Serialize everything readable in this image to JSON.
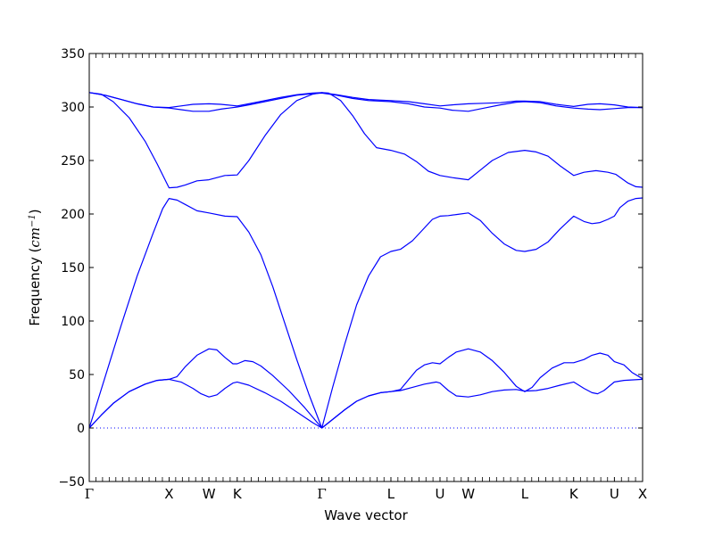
{
  "chart_data": {
    "type": "line",
    "title": "",
    "xlabel": "Wave vector",
    "ylabel": "Frequency (cm⁻¹)",
    "ylabel_text": "Frequency",
    "ylabel_unit": "cm",
    "ylabel_exp": "−1",
    "ylim": [
      -50,
      350
    ],
    "yticks": [
      "−50",
      "0",
      "50",
      "100",
      "150",
      "200",
      "250",
      "300",
      "350"
    ],
    "ytick_values": [
      -50,
      0,
      50,
      100,
      150,
      200,
      250,
      300,
      350
    ],
    "grid": false,
    "legend": "none",
    "line_color": "#0000ff",
    "zero_line": {
      "y": 0,
      "style": "dotted"
    },
    "high_symmetry_points": [
      {
        "label": "Γ",
        "x": 0.0
      },
      {
        "label": "X",
        "x": 1.0
      },
      {
        "label": "W",
        "x": 1.5
      },
      {
        "label": "K",
        "x": 1.854
      },
      {
        "label": "Γ",
        "x": 2.915
      },
      {
        "label": "L",
        "x": 3.78
      },
      {
        "label": "U",
        "x": 4.395
      },
      {
        "label": "W",
        "x": 4.75
      },
      {
        "label": "L",
        "x": 5.457
      },
      {
        "label": "K",
        "x": 6.07
      },
      {
        "label": "U",
        "x": 6.58
      },
      {
        "label": "X",
        "x": 6.934
      }
    ],
    "xlim": [
      0,
      6.934
    ],
    "series": [
      {
        "values": [
          [
            0,
            0
          ],
          [
            0.15,
            12
          ],
          [
            0.3,
            23
          ],
          [
            0.5,
            34
          ],
          [
            0.7,
            41
          ],
          [
            0.85,
            44.5
          ],
          [
            1.0,
            45.5
          ],
          [
            1.15,
            43
          ],
          [
            1.3,
            37
          ],
          [
            1.4,
            32
          ],
          [
            1.5,
            29
          ],
          [
            1.6,
            31
          ],
          [
            1.7,
            37
          ],
          [
            1.8,
            42
          ],
          [
            1.854,
            43
          ],
          [
            2.0,
            40
          ],
          [
            2.2,
            33
          ],
          [
            2.4,
            25
          ],
          [
            2.6,
            15
          ],
          [
            2.8,
            5
          ],
          [
            2.915,
            0
          ],
          [
            3.05,
            8
          ],
          [
            3.2,
            17
          ],
          [
            3.35,
            25
          ],
          [
            3.5,
            30
          ],
          [
            3.65,
            33
          ],
          [
            3.78,
            34
          ],
          [
            3.9,
            35
          ],
          [
            4.05,
            38
          ],
          [
            4.2,
            41
          ],
          [
            4.35,
            43
          ],
          [
            4.395,
            42
          ],
          [
            4.5,
            35
          ],
          [
            4.6,
            30
          ],
          [
            4.75,
            29
          ],
          [
            4.9,
            31
          ],
          [
            5.05,
            34
          ],
          [
            5.2,
            35.5
          ],
          [
            5.35,
            36
          ],
          [
            5.457,
            34.5
          ],
          [
            5.6,
            35
          ],
          [
            5.75,
            37
          ],
          [
            5.9,
            40
          ],
          [
            6.07,
            43
          ],
          [
            6.2,
            37
          ],
          [
            6.3,
            33
          ],
          [
            6.37,
            32
          ],
          [
            6.45,
            35
          ],
          [
            6.58,
            43
          ],
          [
            6.7,
            44.5
          ],
          [
            6.934,
            45.5
          ]
        ]
      },
      {
        "values": [
          [
            0,
            0
          ],
          [
            0.15,
            12
          ],
          [
            0.3,
            23
          ],
          [
            0.5,
            34
          ],
          [
            0.7,
            41
          ],
          [
            0.85,
            44.5
          ],
          [
            1.0,
            45.5
          ],
          [
            1.1,
            48
          ],
          [
            1.2,
            57
          ],
          [
            1.35,
            68
          ],
          [
            1.5,
            74
          ],
          [
            1.6,
            73
          ],
          [
            1.7,
            66
          ],
          [
            1.8,
            60
          ],
          [
            1.854,
            60
          ],
          [
            1.95,
            63
          ],
          [
            2.05,
            62
          ],
          [
            2.15,
            58
          ],
          [
            2.3,
            49
          ],
          [
            2.5,
            35
          ],
          [
            2.7,
            19
          ],
          [
            2.915,
            0
          ],
          [
            3.05,
            8
          ],
          [
            3.2,
            17
          ],
          [
            3.35,
            25
          ],
          [
            3.5,
            30
          ],
          [
            3.65,
            33
          ],
          [
            3.78,
            34
          ],
          [
            3.9,
            36
          ],
          [
            4.0,
            45
          ],
          [
            4.1,
            54
          ],
          [
            4.2,
            59
          ],
          [
            4.3,
            61
          ],
          [
            4.395,
            60
          ],
          [
            4.5,
            66
          ],
          [
            4.6,
            71
          ],
          [
            4.75,
            74
          ],
          [
            4.9,
            71
          ],
          [
            5.05,
            63
          ],
          [
            5.2,
            52
          ],
          [
            5.35,
            39
          ],
          [
            5.457,
            34
          ],
          [
            5.55,
            38
          ],
          [
            5.65,
            47
          ],
          [
            5.8,
            56
          ],
          [
            5.95,
            61
          ],
          [
            6.07,
            61
          ],
          [
            6.2,
            64
          ],
          [
            6.3,
            68
          ],
          [
            6.4,
            70
          ],
          [
            6.5,
            68
          ],
          [
            6.58,
            62
          ],
          [
            6.7,
            59
          ],
          [
            6.8,
            52
          ],
          [
            6.934,
            46
          ]
        ]
      },
      {
        "values": [
          [
            0,
            0
          ],
          [
            0.2,
            48
          ],
          [
            0.4,
            96
          ],
          [
            0.6,
            142
          ],
          [
            0.8,
            182
          ],
          [
            0.92,
            205
          ],
          [
            1.0,
            214.5
          ],
          [
            1.1,
            213
          ],
          [
            1.2,
            209
          ],
          [
            1.35,
            203
          ],
          [
            1.5,
            201
          ],
          [
            1.7,
            198
          ],
          [
            1.854,
            197.5
          ],
          [
            2.0,
            183
          ],
          [
            2.15,
            162
          ],
          [
            2.3,
            132
          ],
          [
            2.45,
            98
          ],
          [
            2.6,
            64
          ],
          [
            2.75,
            32
          ],
          [
            2.915,
            0
          ],
          [
            3.05,
            38
          ],
          [
            3.2,
            78
          ],
          [
            3.35,
            115
          ],
          [
            3.5,
            142
          ],
          [
            3.65,
            160
          ],
          [
            3.78,
            165
          ],
          [
            3.9,
            167
          ],
          [
            4.05,
            175
          ],
          [
            4.2,
            187
          ],
          [
            4.3,
            195
          ],
          [
            4.395,
            198
          ],
          [
            4.5,
            198.5
          ],
          [
            4.6,
            199.5
          ],
          [
            4.75,
            201
          ],
          [
            4.9,
            194
          ],
          [
            5.05,
            182
          ],
          [
            5.2,
            172
          ],
          [
            5.35,
            166
          ],
          [
            5.457,
            165
          ],
          [
            5.6,
            167
          ],
          [
            5.75,
            174
          ],
          [
            5.9,
            186
          ],
          [
            6.07,
            198
          ],
          [
            6.2,
            193
          ],
          [
            6.3,
            191
          ],
          [
            6.4,
            192
          ],
          [
            6.5,
            195
          ],
          [
            6.58,
            198
          ],
          [
            6.65,
            206
          ],
          [
            6.75,
            212
          ],
          [
            6.85,
            214.5
          ],
          [
            6.934,
            215
          ]
        ]
      },
      {
        "values": [
          [
            0,
            313.5
          ],
          [
            0.15,
            312
          ],
          [
            0.3,
            305
          ],
          [
            0.5,
            290
          ],
          [
            0.7,
            268
          ],
          [
            0.85,
            247
          ],
          [
            1.0,
            224.5
          ],
          [
            1.1,
            225
          ],
          [
            1.2,
            227
          ],
          [
            1.35,
            231
          ],
          [
            1.5,
            232
          ],
          [
            1.6,
            234
          ],
          [
            1.7,
            236
          ],
          [
            1.854,
            236.5
          ],
          [
            2.0,
            250
          ],
          [
            2.2,
            273
          ],
          [
            2.4,
            293
          ],
          [
            2.6,
            306
          ],
          [
            2.8,
            312
          ],
          [
            2.915,
            313.5
          ],
          [
            3.0,
            313
          ],
          [
            3.15,
            306
          ],
          [
            3.3,
            292
          ],
          [
            3.45,
            275
          ],
          [
            3.6,
            262
          ],
          [
            3.78,
            259.5
          ],
          [
            3.95,
            256
          ],
          [
            4.1,
            249
          ],
          [
            4.25,
            240
          ],
          [
            4.395,
            236
          ],
          [
            4.55,
            234
          ],
          [
            4.75,
            232
          ],
          [
            4.9,
            241
          ],
          [
            5.05,
            250
          ],
          [
            5.25,
            257.5
          ],
          [
            5.457,
            259.5
          ],
          [
            5.6,
            258
          ],
          [
            5.75,
            254
          ],
          [
            5.9,
            245
          ],
          [
            6.07,
            236
          ],
          [
            6.2,
            239
          ],
          [
            6.35,
            240.5
          ],
          [
            6.5,
            239
          ],
          [
            6.6,
            237
          ],
          [
            6.75,
            229
          ],
          [
            6.85,
            225.5
          ],
          [
            6.934,
            225
          ]
        ]
      },
      {
        "values": [
          [
            0,
            313.5
          ],
          [
            0.2,
            311
          ],
          [
            0.4,
            307
          ],
          [
            0.6,
            303
          ],
          [
            0.8,
            300
          ],
          [
            1.0,
            299
          ],
          [
            1.15,
            297.5
          ],
          [
            1.3,
            296
          ],
          [
            1.5,
            296
          ],
          [
            1.65,
            298
          ],
          [
            1.854,
            300
          ],
          [
            2.0,
            302
          ],
          [
            2.2,
            305
          ],
          [
            2.4,
            308
          ],
          [
            2.6,
            311
          ],
          [
            2.8,
            312.5
          ],
          [
            2.915,
            313
          ],
          [
            3.1,
            311
          ],
          [
            3.3,
            308
          ],
          [
            3.5,
            306
          ],
          [
            3.78,
            305
          ],
          [
            4.0,
            303
          ],
          [
            4.2,
            300
          ],
          [
            4.395,
            299
          ],
          [
            4.55,
            297
          ],
          [
            4.75,
            296
          ],
          [
            4.95,
            299
          ],
          [
            5.15,
            302
          ],
          [
            5.35,
            304.5
          ],
          [
            5.457,
            305
          ],
          [
            5.65,
            304
          ],
          [
            5.85,
            301
          ],
          [
            6.07,
            299
          ],
          [
            6.25,
            298
          ],
          [
            6.4,
            297.5
          ],
          [
            6.58,
            298.5
          ],
          [
            6.75,
            299.5
          ],
          [
            6.934,
            299.5
          ]
        ]
      },
      {
        "values": [
          [
            0,
            313.5
          ],
          [
            0.2,
            311
          ],
          [
            0.4,
            307
          ],
          [
            0.6,
            303
          ],
          [
            0.8,
            300
          ],
          [
            1.0,
            299.5
          ],
          [
            1.15,
            301
          ],
          [
            1.3,
            302.5
          ],
          [
            1.5,
            303
          ],
          [
            1.65,
            302.5
          ],
          [
            1.854,
            301
          ],
          [
            2.0,
            303
          ],
          [
            2.2,
            306
          ],
          [
            2.4,
            309
          ],
          [
            2.6,
            311.5
          ],
          [
            2.8,
            313
          ],
          [
            2.915,
            313.5
          ],
          [
            3.1,
            311.5
          ],
          [
            3.3,
            309
          ],
          [
            3.5,
            307
          ],
          [
            3.78,
            306
          ],
          [
            4.0,
            305
          ],
          [
            4.2,
            303
          ],
          [
            4.395,
            301
          ],
          [
            4.55,
            302
          ],
          [
            4.75,
            303
          ],
          [
            4.95,
            303.5
          ],
          [
            5.15,
            304
          ],
          [
            5.35,
            305.5
          ],
          [
            5.457,
            305.5
          ],
          [
            5.65,
            305
          ],
          [
            5.85,
            302.5
          ],
          [
            6.07,
            300.5
          ],
          [
            6.25,
            302.5
          ],
          [
            6.4,
            303
          ],
          [
            6.58,
            302
          ],
          [
            6.75,
            300
          ],
          [
            6.934,
            299.5
          ]
        ]
      }
    ]
  }
}
